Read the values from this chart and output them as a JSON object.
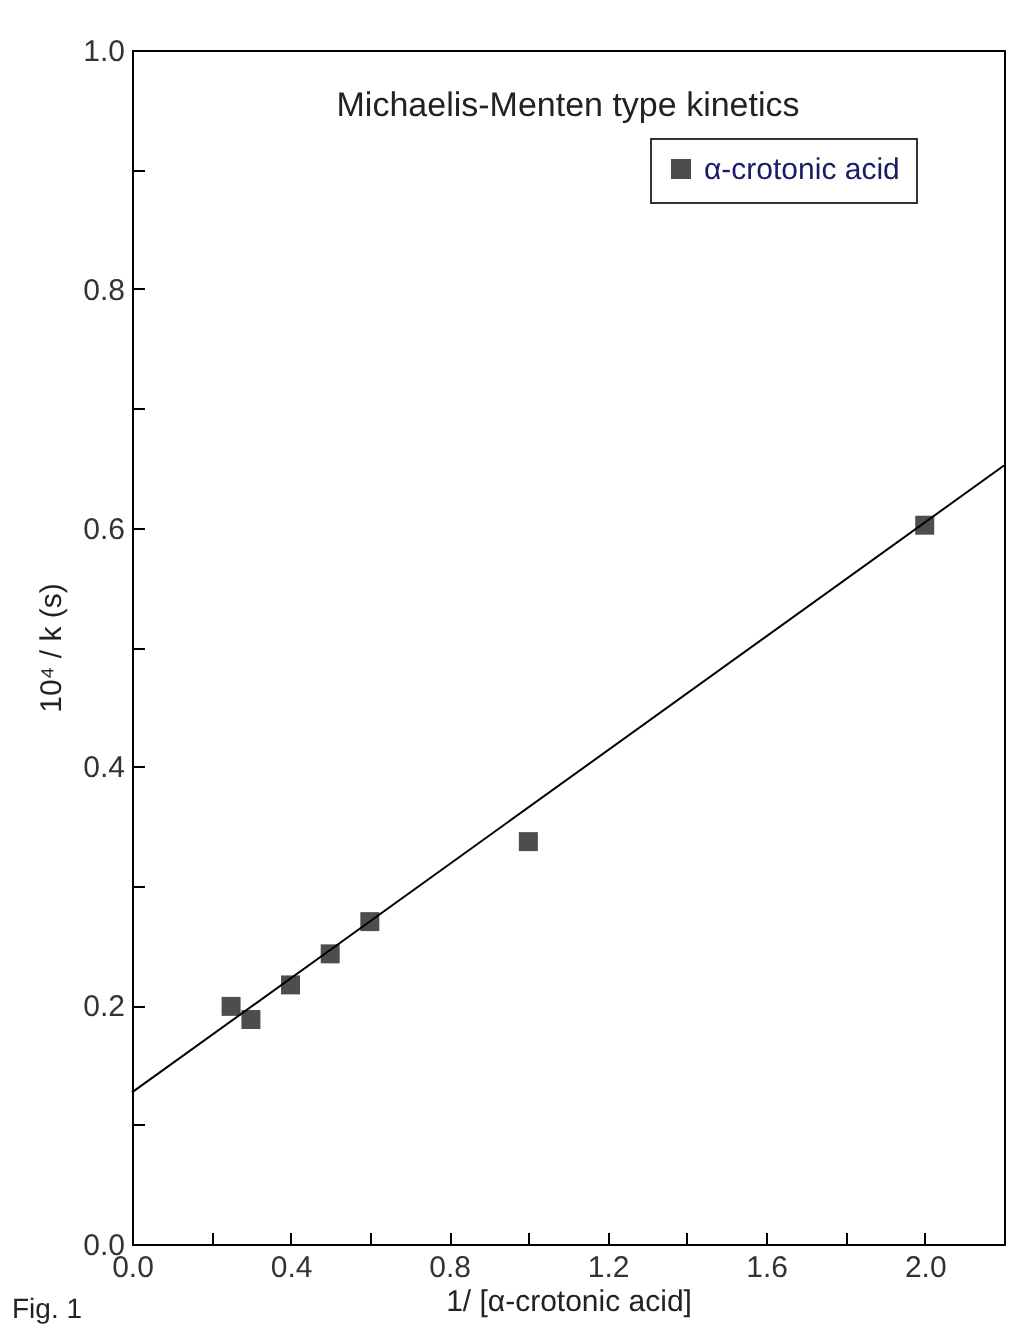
{
  "chart_data": {
    "type": "scatter",
    "title": "Michaelis-Menten type kinetics",
    "xlabel": "1/ [α-crotonic acid]",
    "ylabel": "10⁴ / k (s)",
    "x": [
      0.25,
      0.3,
      0.4,
      0.5,
      0.6,
      1.0,
      2.0
    ],
    "series": [
      {
        "name": "α-crotonic acid",
        "color": "#4d4d4d",
        "values": [
          0.199,
          0.188,
          0.217,
          0.243,
          0.27,
          0.337,
          0.602
        ]
      },
      {
        "type": "line",
        "marker": "none",
        "color": "#000000",
        "x": [
          0,
          2.2
        ],
        "values": [
          0.127,
          0.652
        ]
      }
    ],
    "xlim": [
      0,
      2.2
    ],
    "ylim": [
      0,
      1.0
    ],
    "xticks": [
      {
        "value": 0,
        "label": "0.0"
      },
      {
        "value": 0.2,
        "label": null
      },
      0.4,
      {
        "value": 0.6,
        "label": null
      },
      0.8,
      {
        "value": 1.0,
        "label": null
      },
      1.2,
      {
        "value": 1.4,
        "label": null
      },
      1.6,
      {
        "value": 1.8,
        "label": null
      },
      {
        "value": 2.0,
        "label": "2.0"
      },
      {
        "value": 2.2,
        "label": null
      }
    ],
    "yticks": [
      {
        "value": 0,
        "label": "0.0"
      },
      {
        "value": 0.1,
        "label": null
      },
      0.2,
      {
        "value": 0.3,
        "label": null
      },
      0.4,
      {
        "value": 0.5,
        "label": null
      },
      0.6,
      {
        "value": 0.7,
        "label": null
      },
      0.8,
      {
        "value": 0.9,
        "label": null
      },
      {
        "value": 1.0,
        "label": "1.0"
      }
    ],
    "grid": false,
    "legend": "top right",
    "marker": "square",
    "annotations": [
      "Fig. 1"
    ]
  }
}
